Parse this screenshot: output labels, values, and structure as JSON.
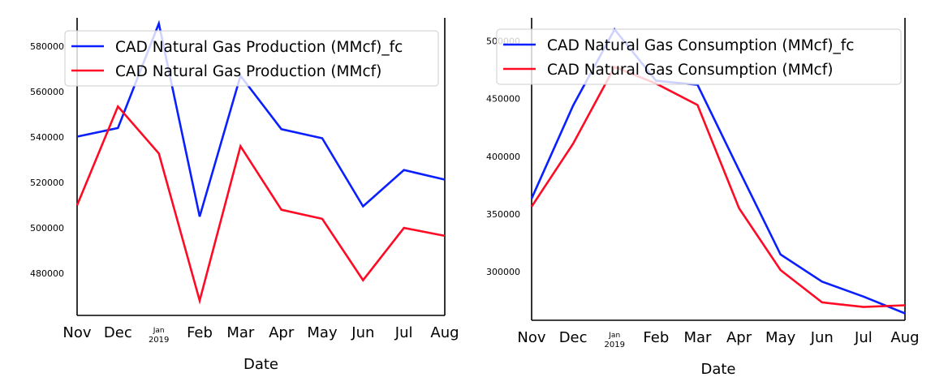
{
  "chart_data": [
    {
      "type": "line",
      "title": "",
      "xlabel": "Date",
      "ylabel": "",
      "categories": [
        "Nov",
        "Dec",
        "Jan",
        "Feb",
        "Mar",
        "Apr",
        "May",
        "Jun",
        "Jul",
        "Aug"
      ],
      "year_label": "2019",
      "ylim": [
        461500,
        592500
      ],
      "yticks": [
        480000,
        500000,
        520000,
        540000,
        560000,
        580000
      ],
      "ytick_labels": [
        "480000",
        "500000",
        "520000",
        "540000",
        "560000",
        "580000"
      ],
      "legend_position": "top-right",
      "grid": false,
      "series": [
        {
          "name": "CAD Natural Gas Production (MMcf)_fc",
          "color": "#0a1fff",
          "values": [
            540200,
            544000,
            590000,
            505000,
            567000,
            543500,
            539500,
            509500,
            525500,
            521300
          ]
        },
        {
          "name": "CAD Natural Gas Production (MMcf)",
          "color": "#ff0a24",
          "values": [
            510000,
            553500,
            532800,
            468000,
            536000,
            508000,
            504000,
            477000,
            500000,
            496500
          ]
        }
      ]
    },
    {
      "type": "line",
      "title": "",
      "xlabel": "Date",
      "ylabel": "",
      "categories": [
        "Nov",
        "Dec",
        "Jan",
        "Feb",
        "Mar",
        "Apr",
        "May",
        "Jun",
        "Jul",
        "Aug"
      ],
      "year_label": "2019",
      "ylim": [
        258000,
        520000
      ],
      "yticks": [
        300000,
        350000,
        400000,
        450000,
        500000
      ],
      "ytick_labels": [
        "300000",
        "350000",
        "400000",
        "450000",
        "500000"
      ],
      "legend_position": "top-right",
      "grid": false,
      "series": [
        {
          "name": "CAD Natural Gas Consumption (MMcf)_fc",
          "color": "#0a1fff",
          "values": [
            363500,
            444000,
            510000,
            465500,
            462000,
            388000,
            315000,
            291500,
            278500,
            264000
          ]
        },
        {
          "name": "CAD Natural Gas Consumption (MMcf)",
          "color": "#ff0a24",
          "values": [
            356500,
            411000,
            477500,
            463000,
            444500,
            355000,
            301500,
            273500,
            269500,
            271000
          ]
        }
      ]
    }
  ]
}
